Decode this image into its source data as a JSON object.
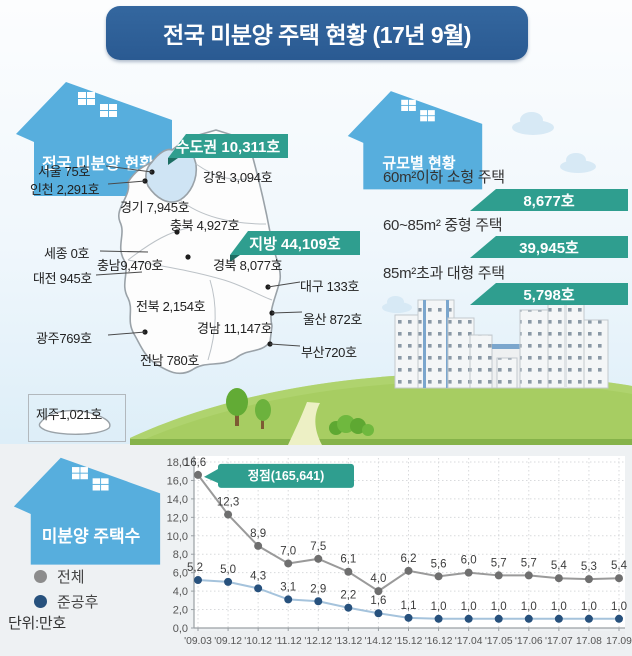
{
  "title": "전국 미분양 주택 현황 (17년 9월)",
  "theme": {
    "banner_blue": "#2e5f99",
    "house_blue": "#57aedd",
    "teal": "#2f9e8f"
  },
  "map_section": {
    "header": "전국 미분양 현황",
    "capital_badge": "수도권 10,311호",
    "province_badge": "지방 44,109호",
    "labels": {
      "seoul": "서울 75호",
      "incheon": "인천 2,291호",
      "gyeonggi": "경기 7,945호",
      "gangwon": "강원 3,094호",
      "chungbuk": "충북 4,927호",
      "sejong": "세종 0호",
      "chungnam": "충남9,470호",
      "daejeon": "대전 945호",
      "gyeongbuk": "경북 8,077호",
      "daegu": "대구 133호",
      "jeonbuk": "전북 2,154호",
      "ulsan": "울산 872호",
      "gyeongnam": "경남 11,147호",
      "busan": "부산720호",
      "gwangju": "광주769호",
      "jeonnam": "전남 780호",
      "jeju": "제주1,021호"
    }
  },
  "size_section": {
    "header": "규모별 현황",
    "items": [
      {
        "label": "60m²이하 소형 주택",
        "value": "8,677호"
      },
      {
        "label": "60~85m² 중형 주택",
        "value": "39,945호"
      },
      {
        "label": "85m²초과 대형 주택",
        "value": "5,798호"
      }
    ]
  },
  "chart_section": {
    "header": "미분양 주택수",
    "legend": [
      {
        "label": "전체",
        "color": "#8c8c8c"
      },
      {
        "label": "준공후",
        "color": "#27517d"
      }
    ],
    "unit": "단위:만호"
  },
  "chart_data": {
    "type": "line",
    "title": "미분양 주택수",
    "unit": "단위:만호",
    "x": [
      "'09.03",
      "'09.12",
      "'10.12",
      "'11.12",
      "'12.12",
      "'13.12",
      "'14.12",
      "'15.12",
      "'16.12",
      "'17.04",
      "'17.05",
      "'17.06",
      "'17.07",
      "17.08",
      "17.09"
    ],
    "series": [
      {
        "name": "전체",
        "color_line": "#9a9a9a",
        "color_dot": "#6f6f6f",
        "values": [
          16.6,
          12.3,
          8.9,
          7.0,
          7.5,
          6.1,
          4.0,
          6.2,
          5.6,
          6.0,
          5.7,
          5.7,
          5.4,
          5.3,
          5.4
        ]
      },
      {
        "name": "준공후",
        "color_line": "#a5c3dc",
        "color_dot": "#27517d",
        "values": [
          5.2,
          5.0,
          4.3,
          3.1,
          2.9,
          2.2,
          1.6,
          1.1,
          1.0,
          1.0,
          1.0,
          1.0,
          1.0,
          1.0,
          1.0
        ]
      }
    ],
    "ylim": [
      0,
      18
    ],
    "ytick_step": 2,
    "ytick_labels": [
      "0,0",
      "2,0",
      "4,0",
      "6,0",
      "8,0",
      "10,0",
      "12,0",
      "14,0",
      "16,0",
      "18,0"
    ],
    "decimal_separator": ",",
    "grid": true,
    "legend_position": "left",
    "annotation": {
      "text": "정점(165,641)",
      "x_index": 0,
      "value": 16.6
    }
  }
}
